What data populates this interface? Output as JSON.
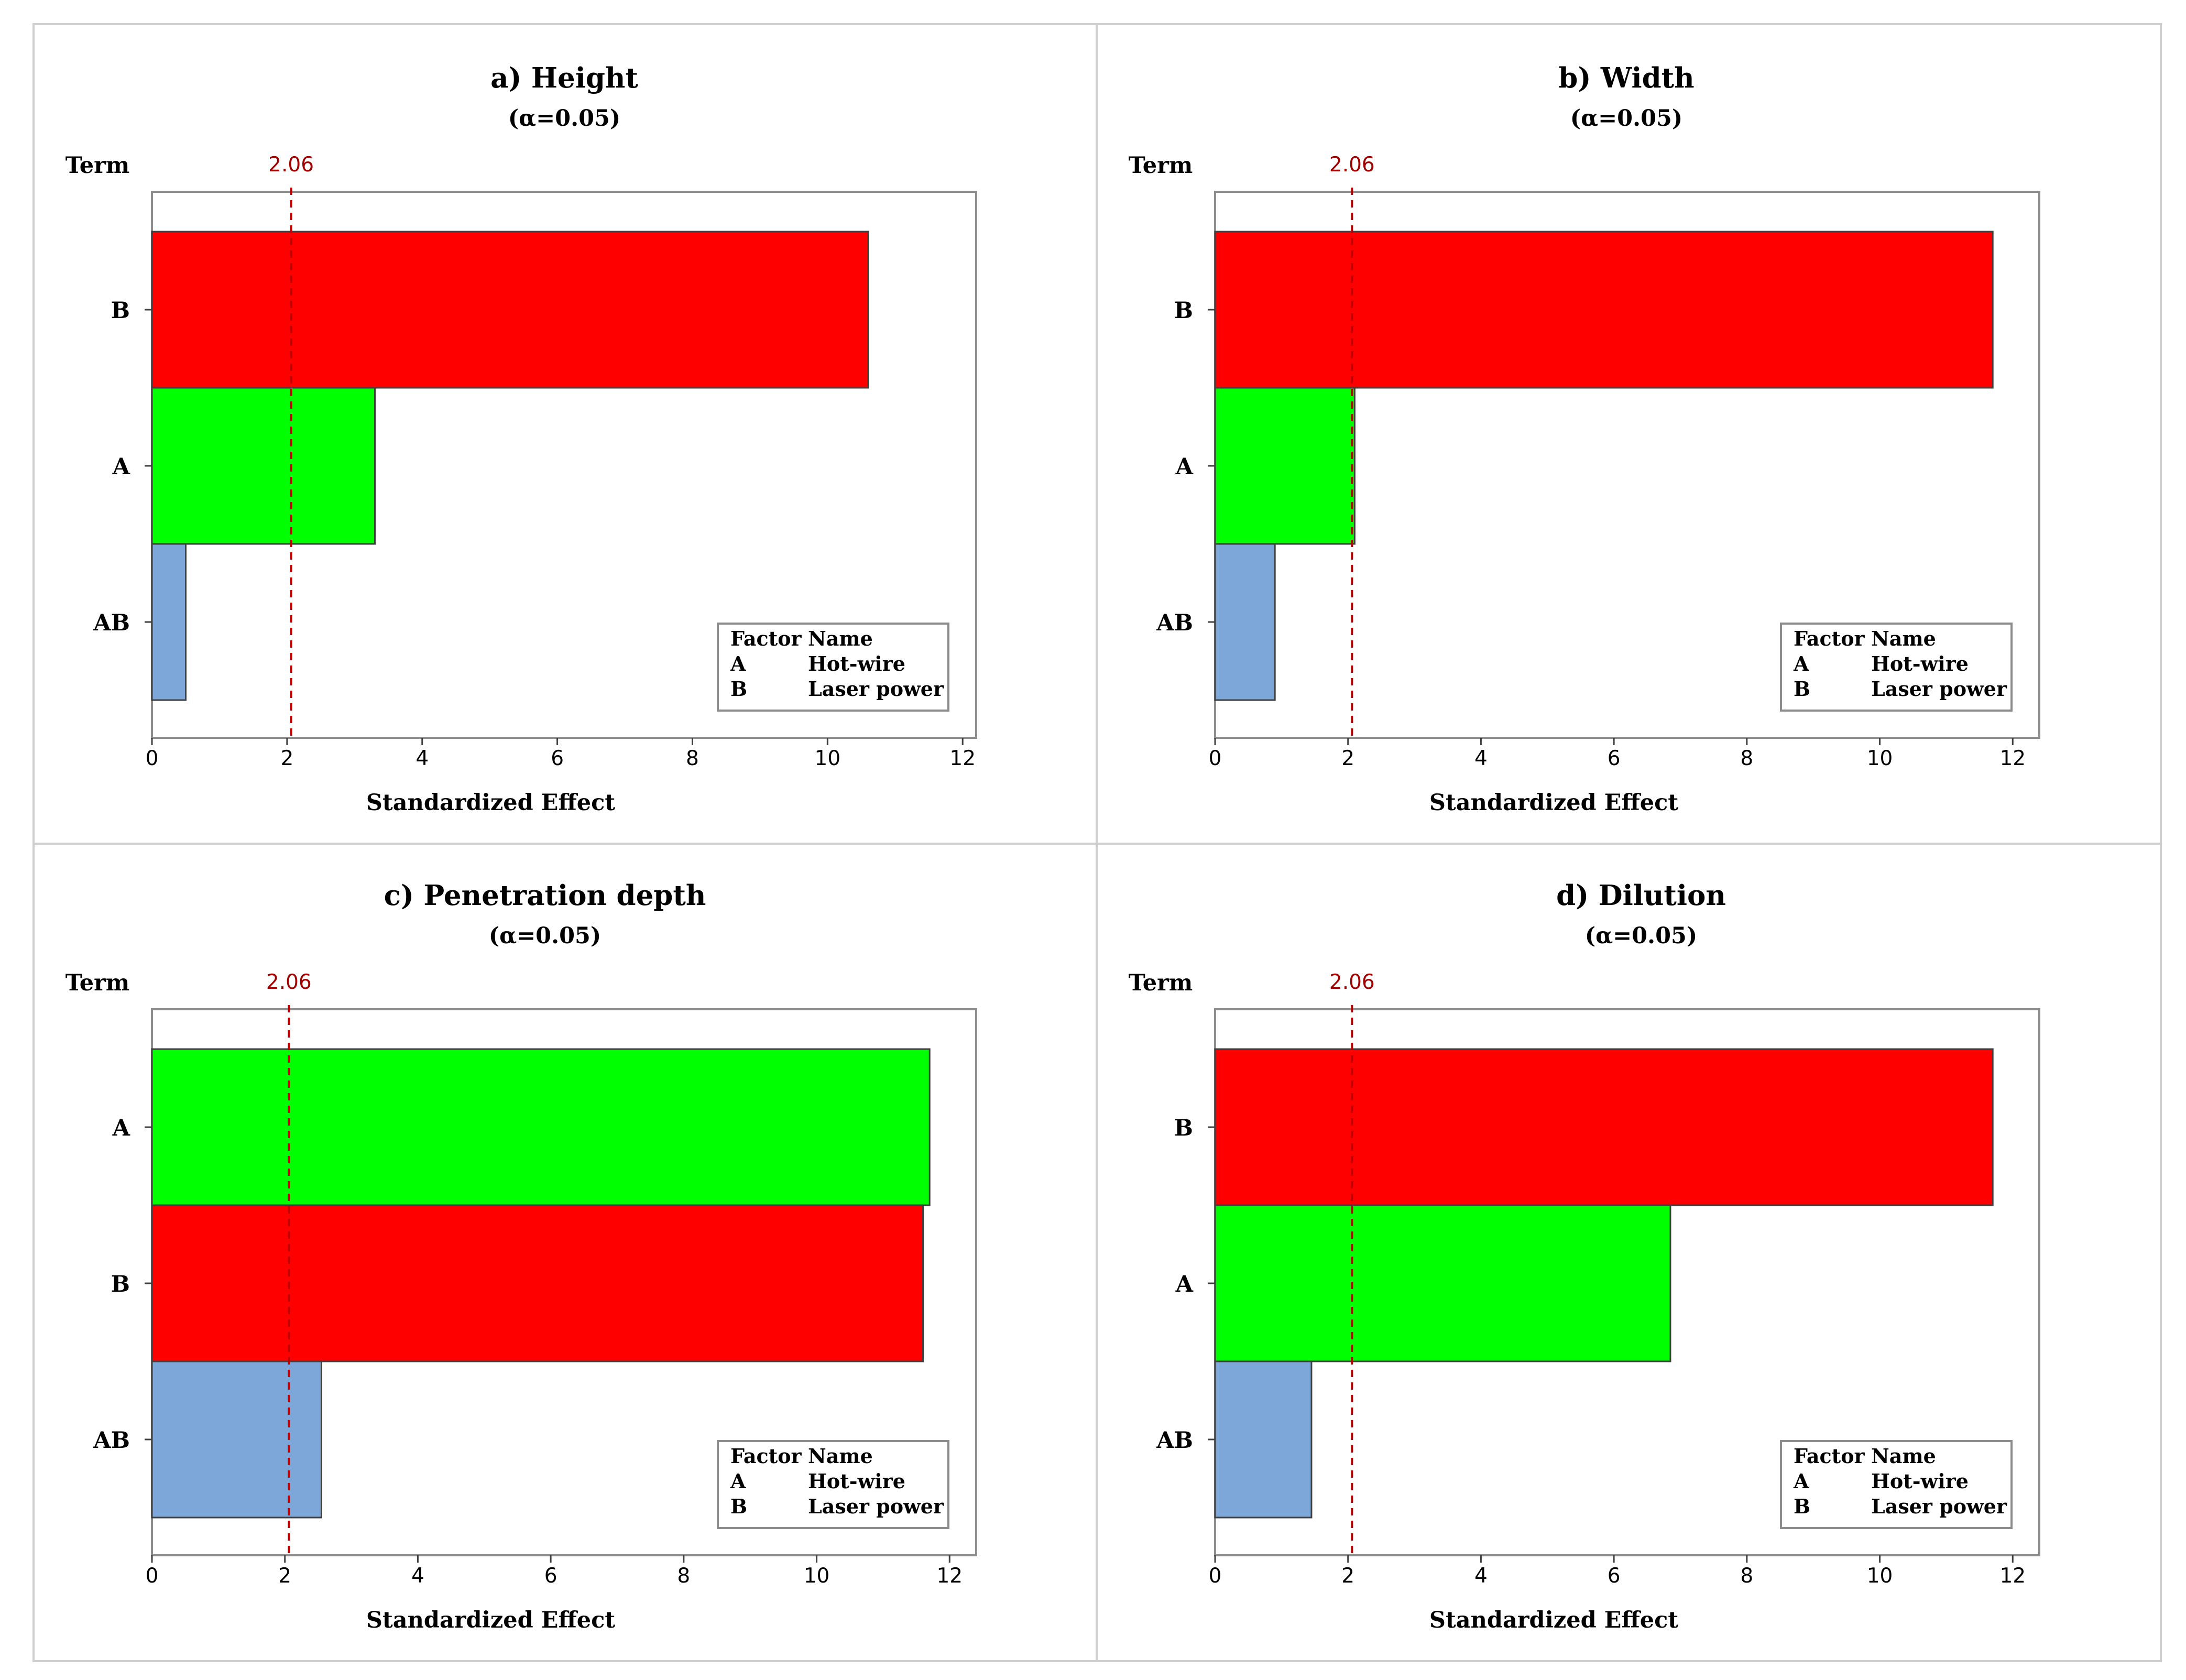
{
  "figure": {
    "legend": {
      "header_factor": "Factor",
      "header_name": "Name",
      "rows": [
        {
          "factor": "A",
          "name": "Hot-wire"
        },
        {
          "factor": "B",
          "name": "Laser power"
        }
      ]
    },
    "colors": {
      "A": "#00ff00",
      "B": "#ff0000",
      "AB": "#7da7d9",
      "ref": "#c00000"
    }
  },
  "chart_data": [
    {
      "type": "bar",
      "orientation": "horizontal",
      "title": "a) Height",
      "subtitle": "(α=0.05)",
      "term_label": "Term",
      "xlabel": "Standardized Effect",
      "xlim": [
        0,
        12.2
      ],
      "xticks": [
        0,
        2,
        4,
        6,
        8,
        10,
        12
      ],
      "reference_line": 2.06,
      "reference_label": "2.06",
      "categories": [
        "B",
        "A",
        "AB"
      ],
      "values": [
        10.6,
        3.3,
        0.5
      ],
      "legend_position": "bottom-right"
    },
    {
      "type": "bar",
      "orientation": "horizontal",
      "title": "b) Width",
      "subtitle": "(α=0.05)",
      "term_label": "Term",
      "xlabel": "Standardized Effect",
      "xlim": [
        0,
        12.4
      ],
      "xticks": [
        0,
        2,
        4,
        6,
        8,
        10,
        12
      ],
      "reference_line": 2.06,
      "reference_label": "2.06",
      "categories": [
        "B",
        "A",
        "AB"
      ],
      "values": [
        11.7,
        2.1,
        0.9
      ],
      "legend_position": "bottom-right"
    },
    {
      "type": "bar",
      "orientation": "horizontal",
      "title": "c) Penetration depth",
      "subtitle": "(α=0.05)",
      "term_label": "Term",
      "xlabel": "Standardized Effect",
      "xlim": [
        0,
        12.4
      ],
      "xticks": [
        0,
        2,
        4,
        6,
        8,
        10,
        12
      ],
      "reference_line": 2.06,
      "reference_label": "2.06",
      "categories": [
        "A",
        "B",
        "AB"
      ],
      "values": [
        11.7,
        11.6,
        2.55
      ],
      "legend_position": "bottom-right"
    },
    {
      "type": "bar",
      "orientation": "horizontal",
      "title": "d) Dilution",
      "subtitle": "(α=0.05)",
      "term_label": "Term",
      "xlabel": "Standardized Effect",
      "xlim": [
        0,
        12.4
      ],
      "xticks": [
        0,
        2,
        4,
        6,
        8,
        10,
        12
      ],
      "reference_line": 2.06,
      "reference_label": "2.06",
      "categories": [
        "B",
        "A",
        "AB"
      ],
      "values": [
        11.7,
        6.85,
        1.45
      ],
      "legend_position": "bottom-right"
    }
  ]
}
